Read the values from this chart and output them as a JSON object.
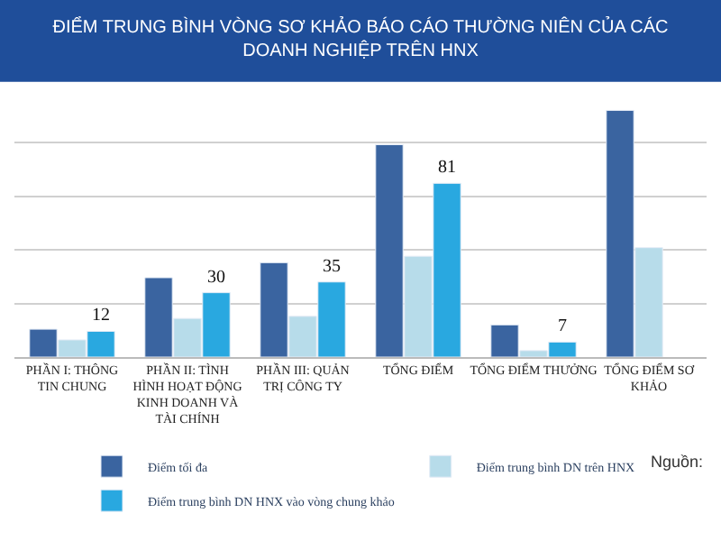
{
  "chart_data": {
    "type": "bar",
    "title": "ĐIỂM TRUNG BÌNH VÒNG SƠ KHẢO BÁO CÁO THƯỜNG NIÊN CỦA CÁC DOANH NGHIỆP TRÊN HNX",
    "categories": [
      "PHẦN I: THÔNG TIN CHUNG",
      "PHẦN II: TÌNH HÌNH HOẠT ĐỘNG KINH DOANH VÀ TÀI CHÍNH",
      "PHẦN III: QUẢN TRỊ CÔNG TY",
      "TỔNG ĐIỂM",
      "TỔNG ĐIỂM THƯỞNG",
      "TỔNG ĐIỂM SƠ KHẢO"
    ],
    "series": [
      {
        "name": "Điểm tối đa",
        "color": "#3a64a0",
        "values": [
          13,
          37,
          44,
          99,
          15,
          115
        ]
      },
      {
        "name": "Điểm trung bình DN trên HNX",
        "color": "#b7dcea",
        "values": [
          8,
          18,
          19,
          47,
          3,
          51
        ]
      },
      {
        "name": "Điểm trung bình DN HNX vào vòng chung khảo",
        "color": "#29a8e0",
        "values": [
          12,
          30,
          35,
          81,
          7,
          null
        ],
        "value_labels": [
          "12",
          "30",
          "35",
          "81",
          "7",
          null
        ]
      }
    ],
    "yticks": [
      {
        "value": 25,
        "label": null
      },
      {
        "value": 50,
        "label": null
      },
      {
        "value": 75,
        "label": null
      },
      {
        "value": 100,
        "label": null
      }
    ],
    "tick_labels": "x",
    "grid": "y",
    "legend": "bottom",
    "annotations": [
      "Nguồn:"
    ]
  }
}
